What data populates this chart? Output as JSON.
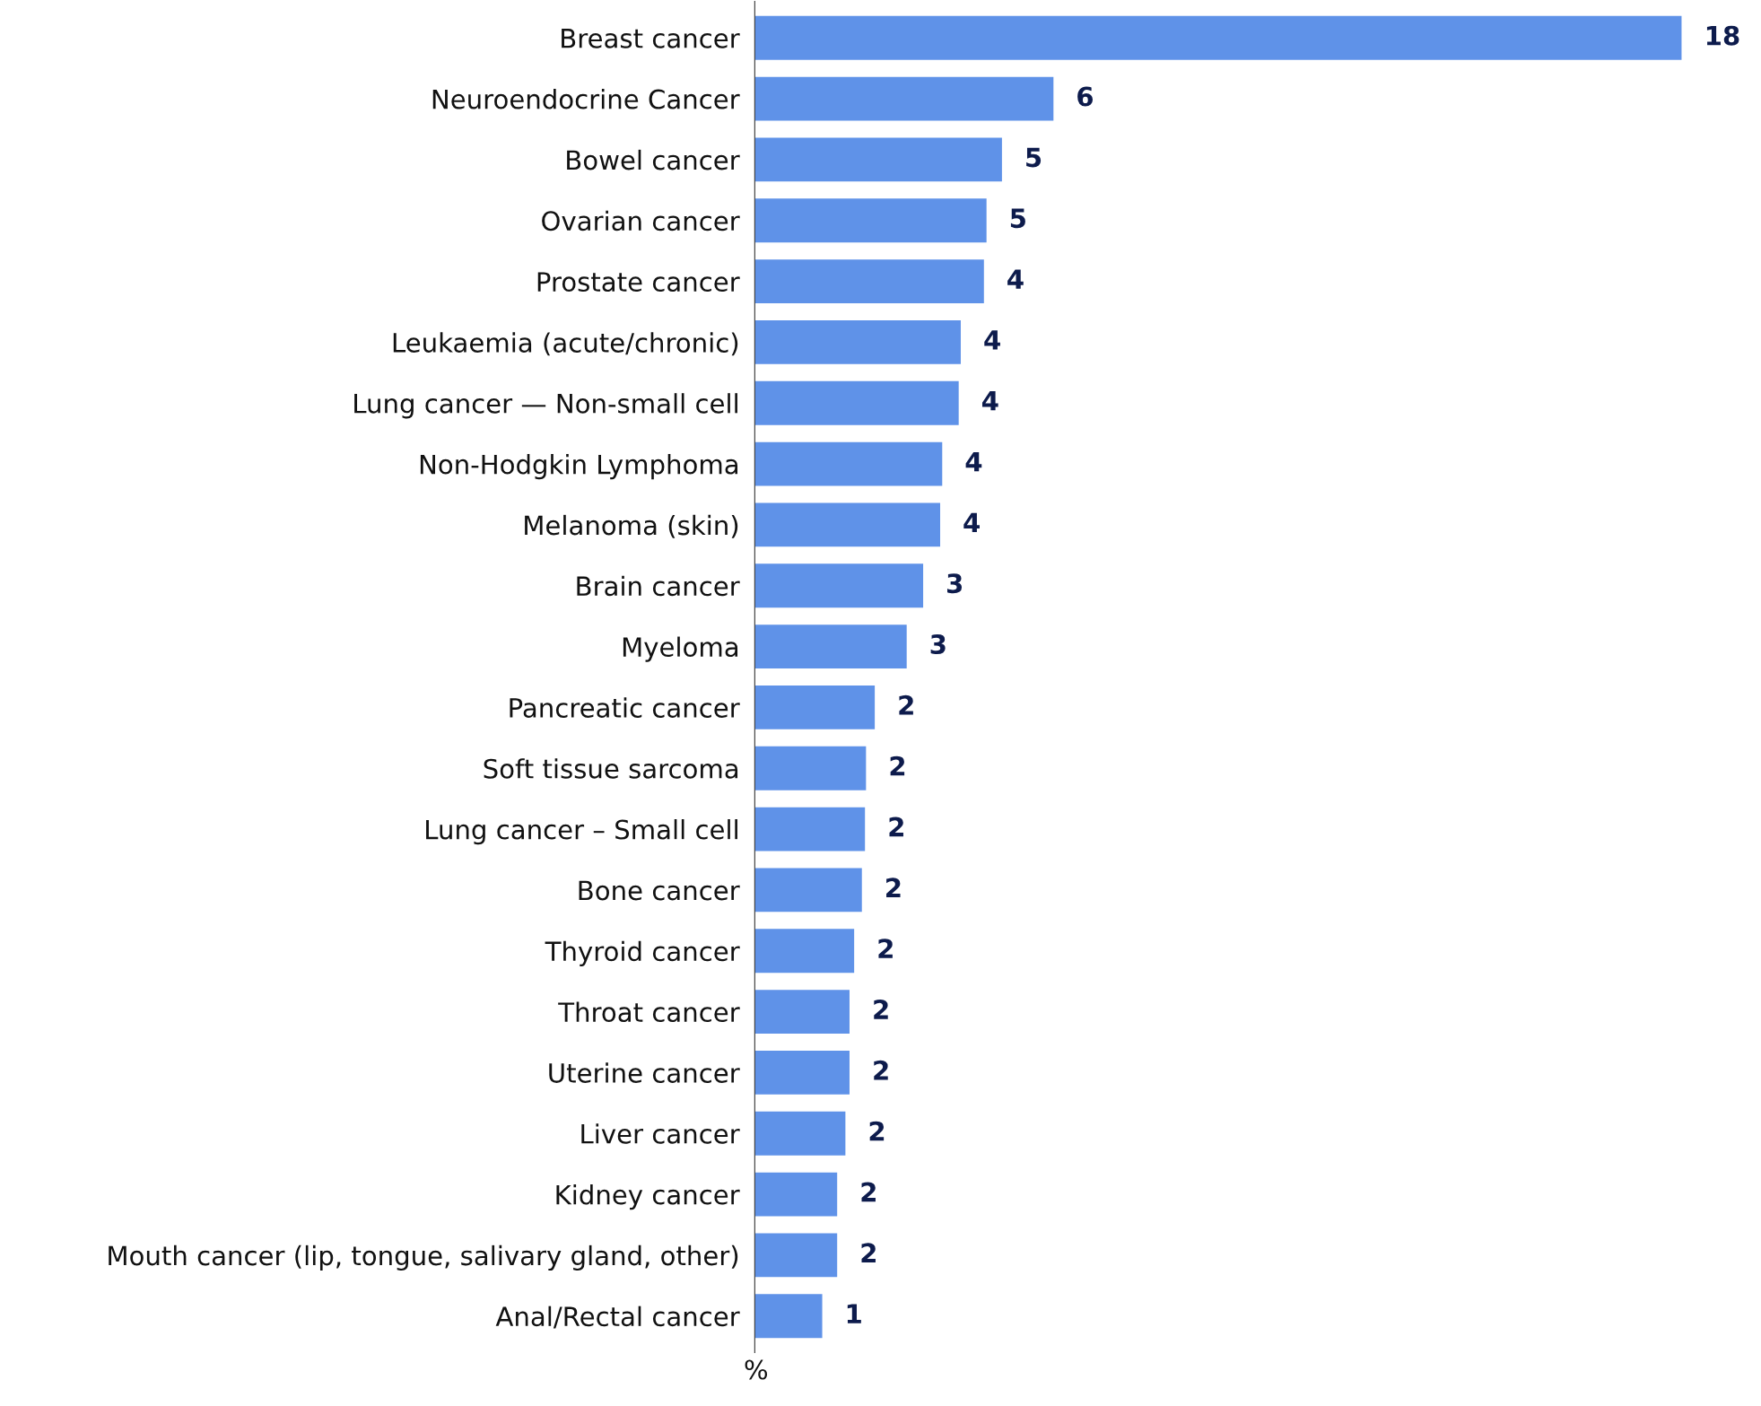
{
  "chart_data": {
    "type": "bar",
    "orientation": "horizontal",
    "xlabel": "%",
    "categories": [
      "Breast cancer",
      "Neuroendocrine Cancer",
      "Bowel cancer",
      "Ovarian cancer",
      "Prostate cancer",
      "Leukaemia (acute/chronic)",
      "Lung cancer — Non-small cell",
      "Non-Hodgkin Lymphoma",
      "Melanoma (skin)",
      "Brain cancer",
      "Myeloma",
      "Pancreatic cancer",
      "Soft tissue sarcoma",
      "Lung cancer – Small cell",
      "Bone cancer",
      "Thyroid cancer",
      "Throat cancer",
      "Uterine cancer",
      "Liver cancer",
      "Kidney cancer",
      "Mouth cancer (lip, tongue, salivary gland, other)",
      "Anal/Rectal cancer"
    ],
    "values": [
      18.0,
      5.8,
      4.8,
      4.5,
      4.45,
      4.0,
      3.96,
      3.64,
      3.6,
      3.27,
      2.95,
      2.33,
      2.16,
      2.14,
      2.08,
      1.93,
      1.84,
      1.84,
      1.76,
      1.6,
      1.6,
      1.31
    ],
    "value_labels": [
      "18",
      "6",
      "5",
      "5",
      "4",
      "4",
      "4",
      "4",
      "4",
      "3",
      "3",
      "2",
      "2",
      "2",
      "2",
      "2",
      "2",
      "2",
      "2",
      "2",
      "2",
      "1"
    ],
    "color": "#5f92e8",
    "grid": false,
    "legend": false
  }
}
